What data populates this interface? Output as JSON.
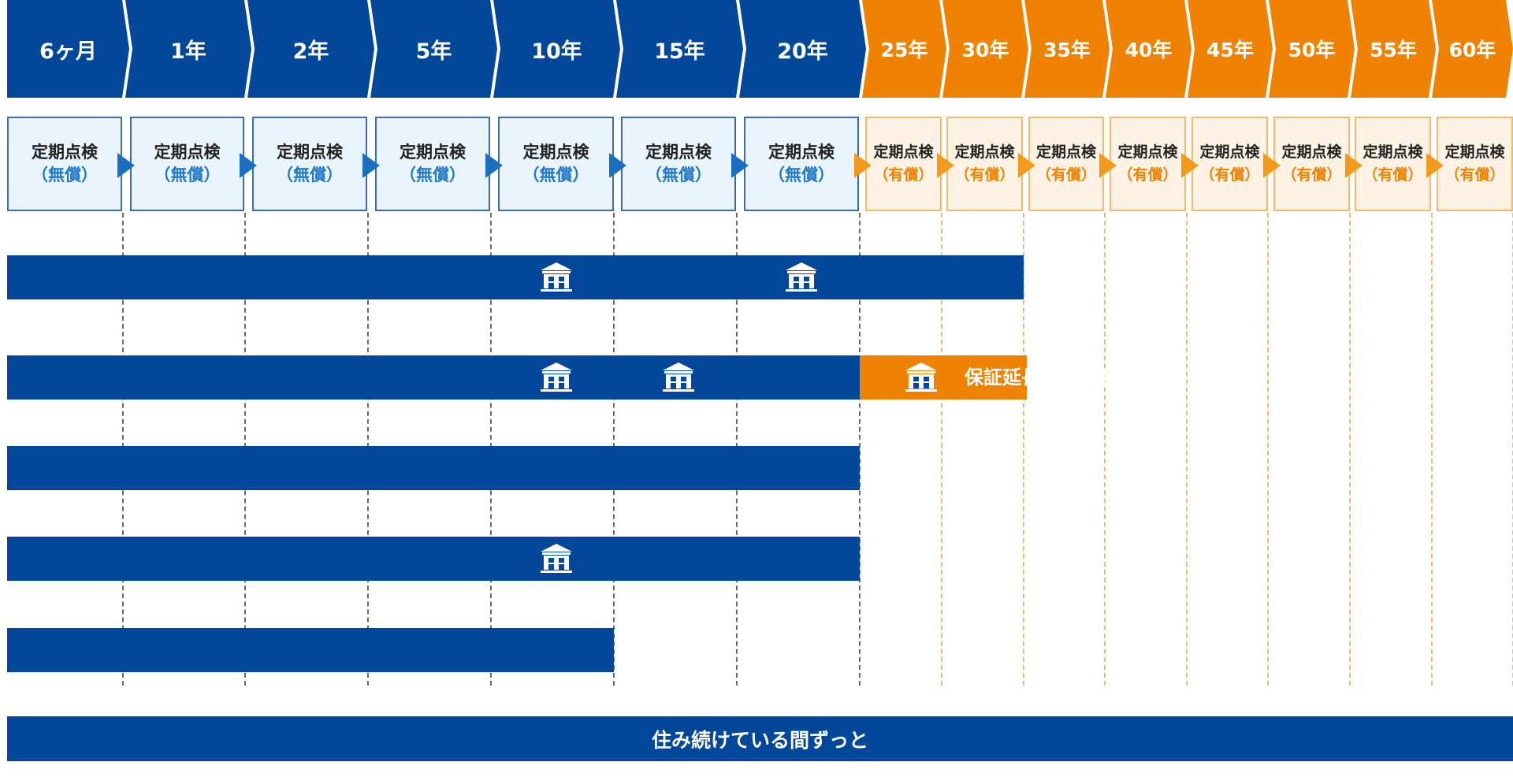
{
  "timeline": {
    "periods": [
      {
        "label": "6ヶ月",
        "paid": false
      },
      {
        "label": "1年",
        "paid": false
      },
      {
        "label": "2年",
        "paid": false
      },
      {
        "label": "5年",
        "paid": false
      },
      {
        "label": "10年",
        "paid": false
      },
      {
        "label": "15年",
        "paid": false
      },
      {
        "label": "20年",
        "paid": false
      },
      {
        "label": "25年",
        "paid": true
      },
      {
        "label": "30年",
        "paid": true
      },
      {
        "label": "35年",
        "paid": true
      },
      {
        "label": "40年",
        "paid": true
      },
      {
        "label": "45年",
        "paid": true
      },
      {
        "label": "50年",
        "paid": true
      },
      {
        "label": "55年",
        "paid": true
      },
      {
        "label": "60年",
        "paid": true
      }
    ]
  },
  "inspection": {
    "title": "定期点検",
    "free": "（無償）",
    "paid": "（有償）"
  },
  "rows": [
    {
      "until": "30年",
      "icons_at": [
        "10年",
        "20年"
      ]
    },
    {
      "until": "20年",
      "icons_at": [
        "10年",
        "15年"
      ],
      "extension": {
        "until": "30年",
        "icon": true,
        "label": "保証延長可能期間"
      }
    },
    {
      "until": "20年",
      "icons_at": []
    },
    {
      "until": "20年",
      "icons_at": [
        "10年"
      ]
    },
    {
      "until": "10年",
      "icons_at": []
    }
  ],
  "lifetime": {
    "label": "住み続けている間ずっと"
  },
  "icons": {
    "warranty": "building-icon"
  },
  "colors": {
    "blue": "#02479a",
    "orange": "#ef8200",
    "free_text": "#1f78c8",
    "paid_text": "#ef8200"
  }
}
